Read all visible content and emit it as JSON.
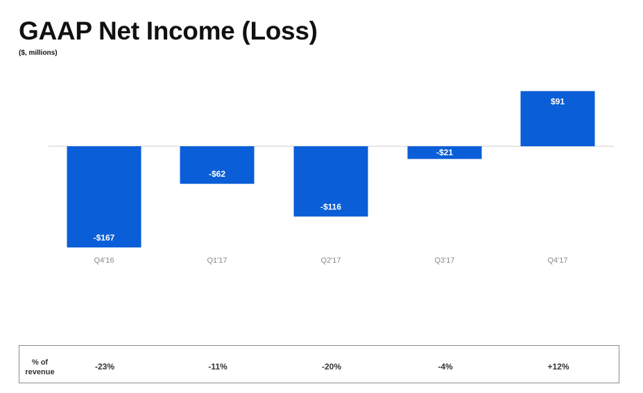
{
  "header": {
    "title": "GAAP Net Income (Loss)",
    "subtitle": "($, millions)"
  },
  "chart_data": {
    "type": "bar",
    "categories": [
      "Q4'16",
      "Q1'17",
      "Q2'17",
      "Q3'17",
      "Q4'17"
    ],
    "values": [
      -167,
      -62,
      -116,
      -21,
      91
    ],
    "data_labels": [
      "-$167",
      "-$62",
      "-$116",
      "-$21",
      "$91"
    ],
    "bar_color": "#0a5ed7",
    "label_color": "#ffffff",
    "tick_color": "#888888",
    "ylim": [
      -167,
      91
    ],
    "grid": false
  },
  "footer": {
    "label_line1": "% of",
    "label_line2": "revenue",
    "values": [
      "-23%",
      "-11%",
      "-20%",
      "-4%",
      "+12%"
    ]
  }
}
